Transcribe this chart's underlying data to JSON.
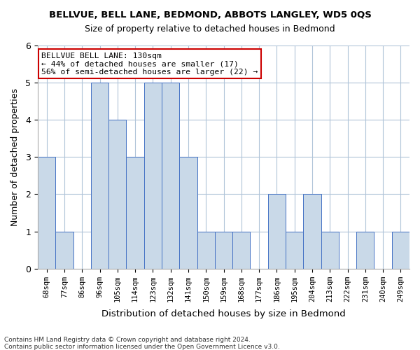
{
  "title": "BELLVUE, BELL LANE, BEDMOND, ABBOTS LANGLEY, WD5 0QS",
  "subtitle": "Size of property relative to detached houses in Bedmond",
  "xlabel": "Distribution of detached houses by size in Bedmond",
  "ylabel": "Number of detached properties",
  "footer_line1": "Contains HM Land Registry data © Crown copyright and database right 2024.",
  "footer_line2": "Contains public sector information licensed under the Open Government Licence v3.0.",
  "annotation_line1": "BELLVUE BELL LANE: 130sqm",
  "annotation_line2": "← 44% of detached houses are smaller (17)",
  "annotation_line3": "56% of semi-detached houses are larger (22) →",
  "categories": [
    "68sqm",
    "77sqm",
    "86sqm",
    "96sqm",
    "105sqm",
    "114sqm",
    "123sqm",
    "132sqm",
    "141sqm",
    "150sqm",
    "159sqm",
    "168sqm",
    "177sqm",
    "186sqm",
    "195sqm",
    "204sqm",
    "213sqm",
    "222sqm",
    "231sqm",
    "240sqm",
    "249sqm"
  ],
  "values": [
    3,
    1,
    0,
    5,
    4,
    3,
    5,
    5,
    3,
    1,
    1,
    1,
    0,
    2,
    1,
    2,
    1,
    0,
    1,
    0,
    1
  ],
  "highlight_index": 7,
  "bar_color_normal": "#c9d9e8",
  "bar_color_highlight": "#c9d9e8",
  "bar_edge_color": "#4472c4",
  "annotation_box_color": "#ffffff",
  "annotation_box_edge": "#cc0000",
  "background_color": "#ffffff",
  "grid_color": "#b0c4d8",
  "ylim": [
    0,
    6
  ],
  "yticks": [
    0,
    1,
    2,
    3,
    4,
    5,
    6
  ]
}
